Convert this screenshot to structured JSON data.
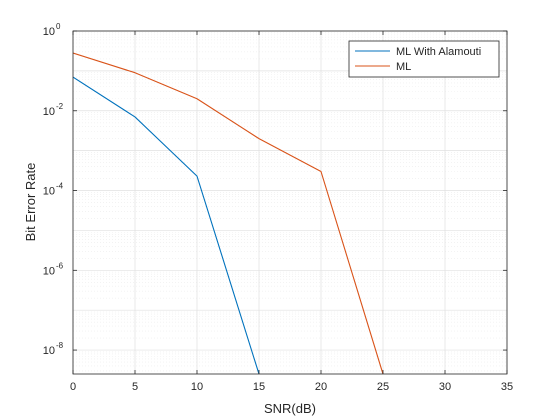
{
  "chart_data": {
    "type": "line",
    "title": "",
    "xlabel": "SNR(dB)",
    "ylabel": "Bit Error Rate",
    "xlim": [
      0,
      35
    ],
    "ylim_exponent": [
      -8.6,
      0
    ],
    "y_scale": "log",
    "grid": true,
    "minor_grid": true,
    "legend_position": "top-right",
    "x_ticks": [
      0,
      5,
      10,
      15,
      20,
      25,
      30,
      35
    ],
    "y_tick_exponents": [
      0,
      -2,
      -4,
      -6,
      -8
    ],
    "y_tick_base": "10",
    "series": [
      {
        "name": "ML With Alamouti",
        "color": "#0072BD",
        "x": [
          0,
          5,
          10,
          15
        ],
        "y": [
          0.07,
          0.007,
          0.00023,
          2.5e-09
        ]
      },
      {
        "name": "ML",
        "color": "#D95319",
        "x": [
          0,
          5,
          10,
          15,
          20,
          25
        ],
        "y": [
          0.28,
          0.09,
          0.02,
          0.002,
          0.0003,
          2.5e-09
        ]
      }
    ]
  }
}
